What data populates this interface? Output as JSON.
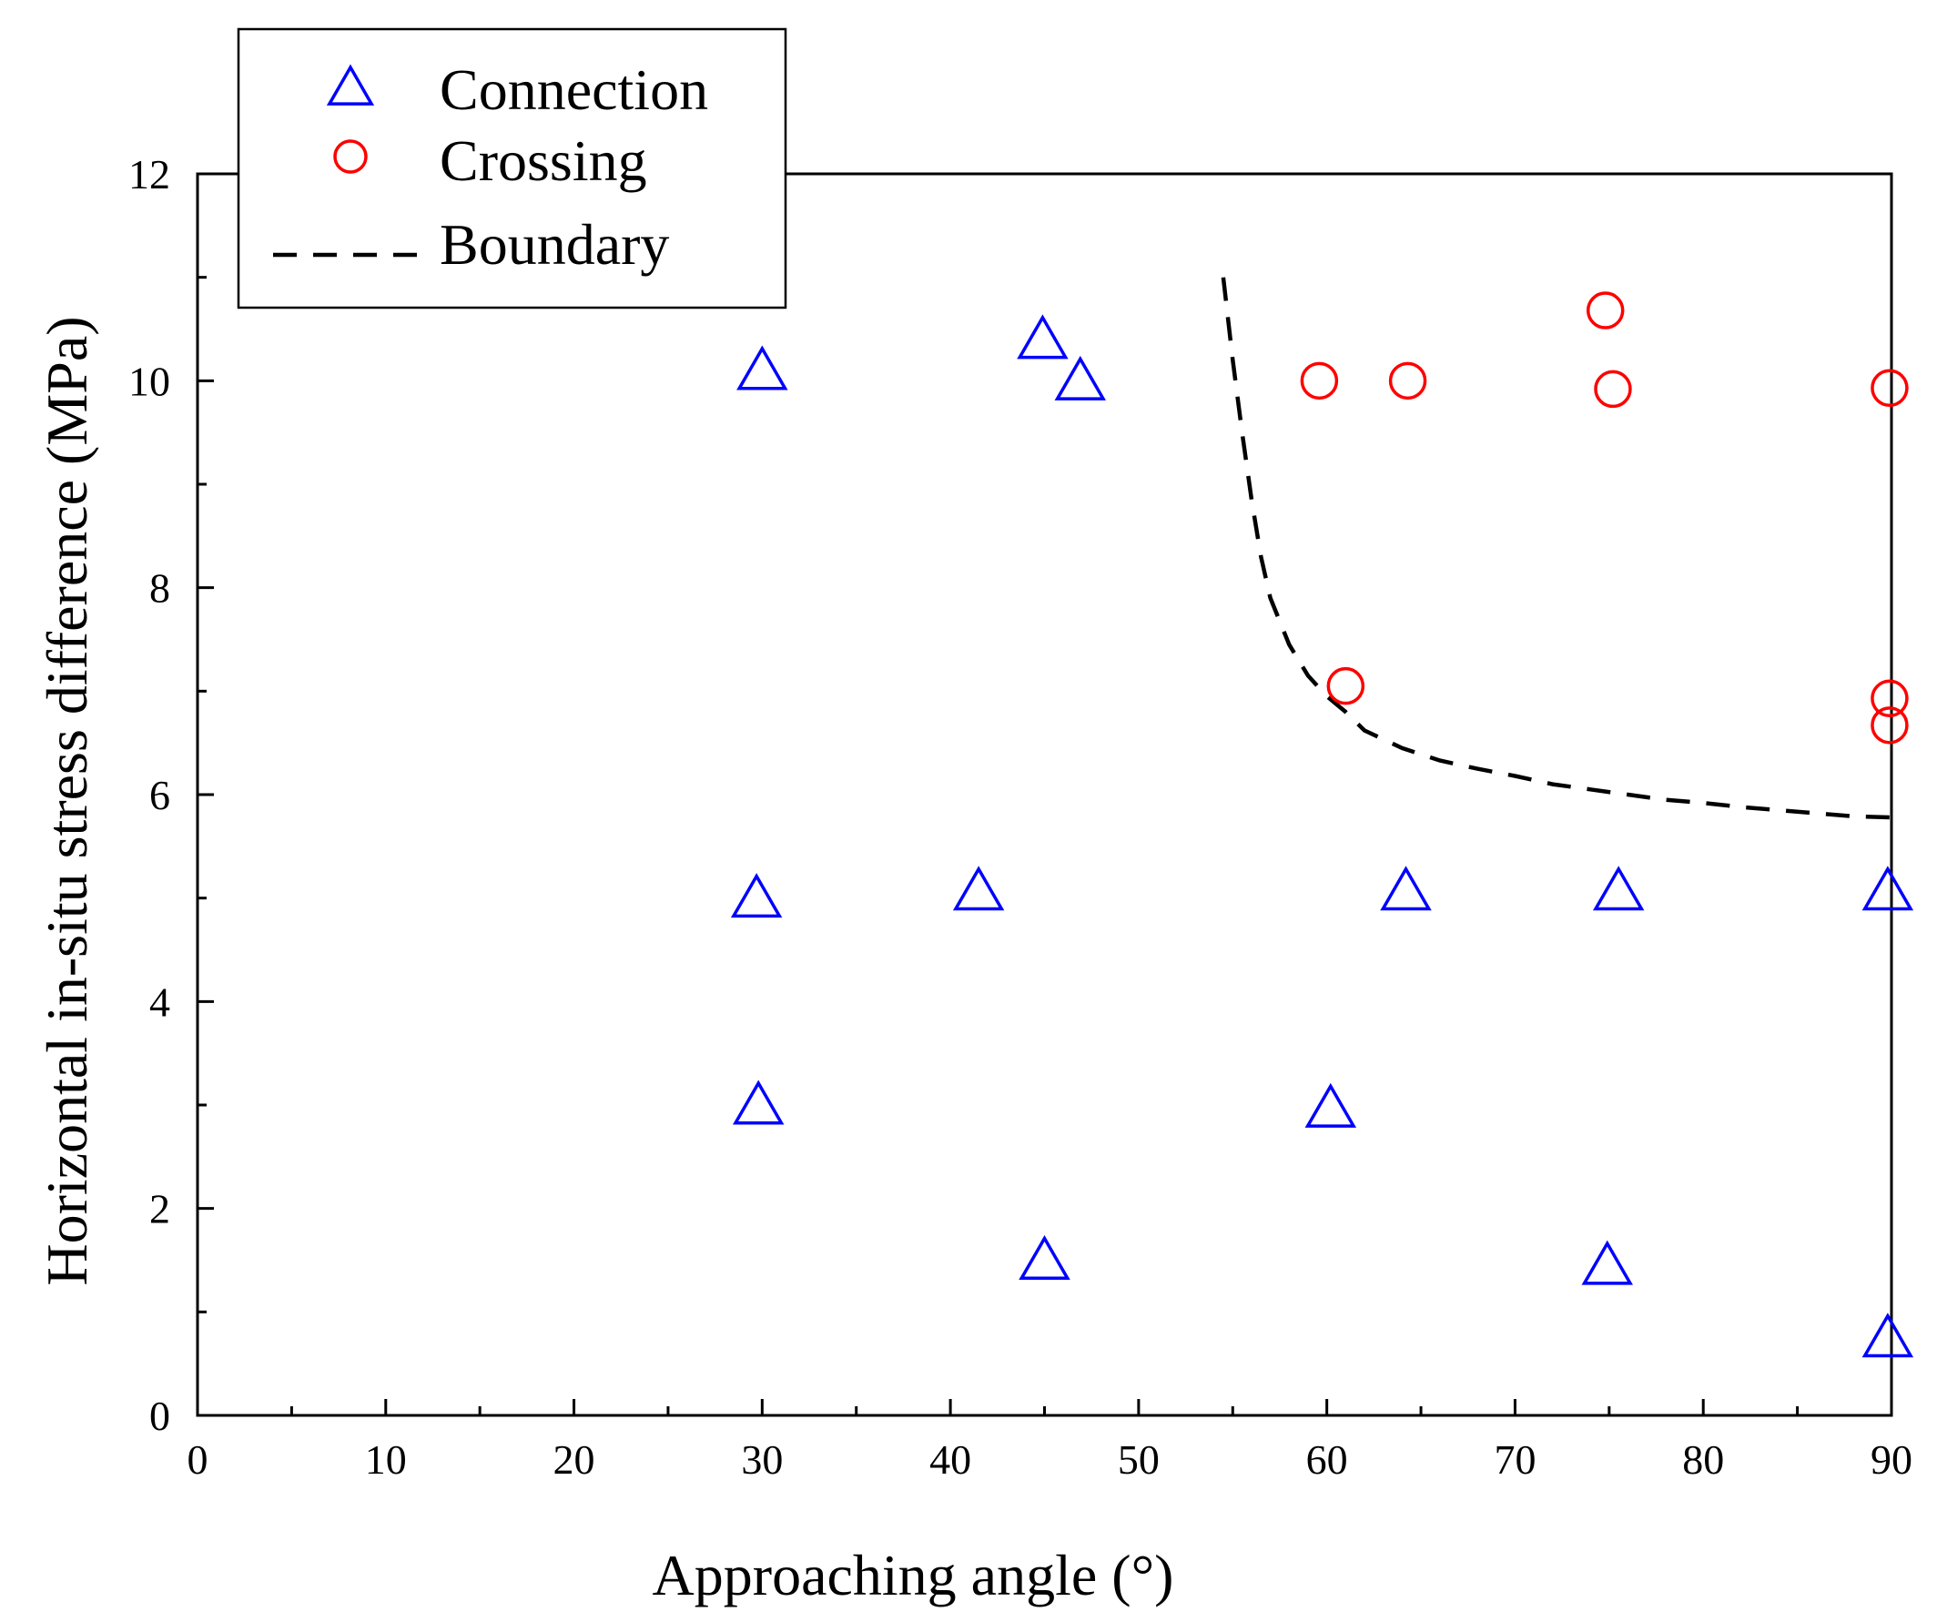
{
  "chart_data": {
    "type": "scatter",
    "title": "",
    "xlabel": "Approaching angle (°)",
    "ylabel": "Horizontal in-situ stress difference (MPa)",
    "xlim": [
      0,
      90
    ],
    "ylim": [
      0,
      12
    ],
    "x_ticks": [
      0,
      10,
      20,
      30,
      40,
      50,
      60,
      70,
      80,
      90
    ],
    "y_ticks": [
      0,
      2,
      4,
      6,
      8,
      10,
      12
    ],
    "x_minor_step": 5,
    "y_minor_step": 1,
    "grid": false,
    "legend_position": "top-left",
    "series": [
      {
        "name": "Connection",
        "marker": "triangle",
        "color": "#0000ff",
        "points": [
          {
            "x": 30,
            "y": 10.1
          },
          {
            "x": 44.9,
            "y": 10.4
          },
          {
            "x": 46.9,
            "y": 10.0
          },
          {
            "x": 29.7,
            "y": 5.0
          },
          {
            "x": 41.5,
            "y": 5.07
          },
          {
            "x": 64.2,
            "y": 5.07
          },
          {
            "x": 75.5,
            "y": 5.07
          },
          {
            "x": 89.8,
            "y": 5.07
          },
          {
            "x": 29.8,
            "y": 3.0
          },
          {
            "x": 60.2,
            "y": 2.97
          },
          {
            "x": 45.0,
            "y": 1.5
          },
          {
            "x": 74.9,
            "y": 1.45
          },
          {
            "x": 89.8,
            "y": 0.75
          }
        ]
      },
      {
        "name": "Crossing",
        "marker": "circle",
        "color": "#ff0000",
        "points": [
          {
            "x": 59.6,
            "y": 10.0
          },
          {
            "x": 64.3,
            "y": 10.0
          },
          {
            "x": 74.8,
            "y": 10.68
          },
          {
            "x": 75.2,
            "y": 9.92
          },
          {
            "x": 89.9,
            "y": 9.93
          },
          {
            "x": 61.0,
            "y": 7.05
          },
          {
            "x": 89.9,
            "y": 6.93
          },
          {
            "x": 89.9,
            "y": 6.67
          }
        ]
      },
      {
        "name": "Boundary",
        "style": "dashed-line",
        "color": "#000000",
        "points": [
          {
            "x": 54.5,
            "y": 11.0
          },
          {
            "x": 55.0,
            "y": 10.2
          },
          {
            "x": 55.5,
            "y": 9.5
          },
          {
            "x": 56.0,
            "y": 8.85
          },
          {
            "x": 56.5,
            "y": 8.3
          },
          {
            "x": 57.0,
            "y": 7.9
          },
          {
            "x": 58.0,
            "y": 7.45
          },
          {
            "x": 59.0,
            "y": 7.15
          },
          {
            "x": 60.0,
            "y": 6.95
          },
          {
            "x": 61.0,
            "y": 6.8
          },
          {
            "x": 62.0,
            "y": 6.62
          },
          {
            "x": 64.0,
            "y": 6.45
          },
          {
            "x": 66.0,
            "y": 6.33
          },
          {
            "x": 68.0,
            "y": 6.25
          },
          {
            "x": 70.0,
            "y": 6.18
          },
          {
            "x": 72.0,
            "y": 6.1
          },
          {
            "x": 74.0,
            "y": 6.05
          },
          {
            "x": 76.0,
            "y": 6.0
          },
          {
            "x": 78.0,
            "y": 5.95
          },
          {
            "x": 80.0,
            "y": 5.92
          },
          {
            "x": 82.0,
            "y": 5.88
          },
          {
            "x": 84.0,
            "y": 5.85
          },
          {
            "x": 86.0,
            "y": 5.82
          },
          {
            "x": 88.0,
            "y": 5.79
          },
          {
            "x": 90.0,
            "y": 5.78
          }
        ]
      }
    ]
  }
}
